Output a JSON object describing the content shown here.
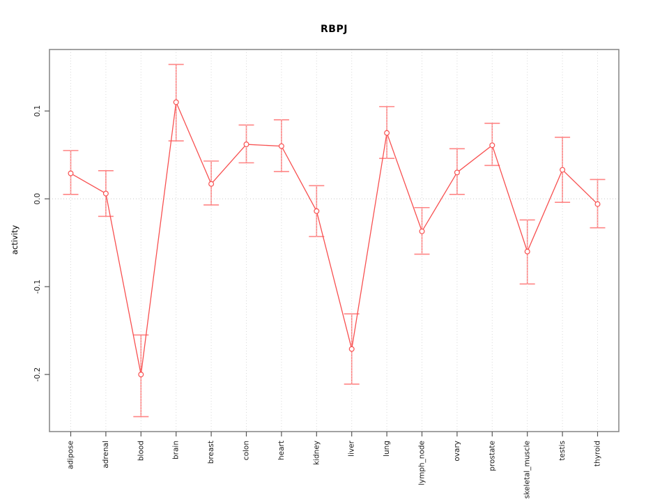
{
  "header": {
    "title": "RBPJ"
  },
  "chart_data": {
    "type": "line",
    "title": "RBPJ",
    "xlabel": "",
    "ylabel": "activity",
    "categories": [
      "adipose",
      "adrenal",
      "blood",
      "brain",
      "breast",
      "colon",
      "heart",
      "kidney",
      "liver",
      "lung",
      "lymph_node",
      "ovary",
      "prostate",
      "skeletal_muscle",
      "testis",
      "thyroid"
    ],
    "series": [
      {
        "name": "activity",
        "marker": "open-circle",
        "values": [
          0.029,
          0.006,
          -0.2,
          0.11,
          0.017,
          0.062,
          0.06,
          -0.014,
          -0.171,
          0.075,
          -0.037,
          0.03,
          0.061,
          -0.06,
          0.033,
          -0.006
        ],
        "ci_lower": [
          0.005,
          -0.02,
          -0.248,
          0.066,
          -0.007,
          0.041,
          0.031,
          -0.043,
          -0.211,
          0.046,
          -0.063,
          0.005,
          0.038,
          -0.097,
          -0.004,
          -0.033
        ],
        "ci_upper": [
          0.055,
          0.032,
          -0.155,
          0.153,
          0.043,
          0.084,
          0.09,
          0.015,
          -0.131,
          0.105,
          -0.01,
          0.057,
          0.086,
          -0.024,
          0.07,
          0.022
        ]
      }
    ],
    "ytick_labels": [
      "0.1",
      "0.0",
      "-0.1",
      "-0.2"
    ],
    "ytick_values": [
      0.1,
      0.0,
      -0.1,
      -0.2
    ],
    "ylim": [
      -0.265,
      0.17
    ],
    "legend": "none",
    "grid": {
      "vertical": "dotted-per-category",
      "horizontal": "dotted-zero-line-only"
    },
    "colors": {
      "series": "#f85050",
      "error_bars": "#ff8585",
      "grid": "#d8d8d8",
      "zero_line": "#c6c6c6",
      "box": "#8a8a8a",
      "tick": "#555555",
      "text": "#000000",
      "background": "#ffffff"
    }
  }
}
